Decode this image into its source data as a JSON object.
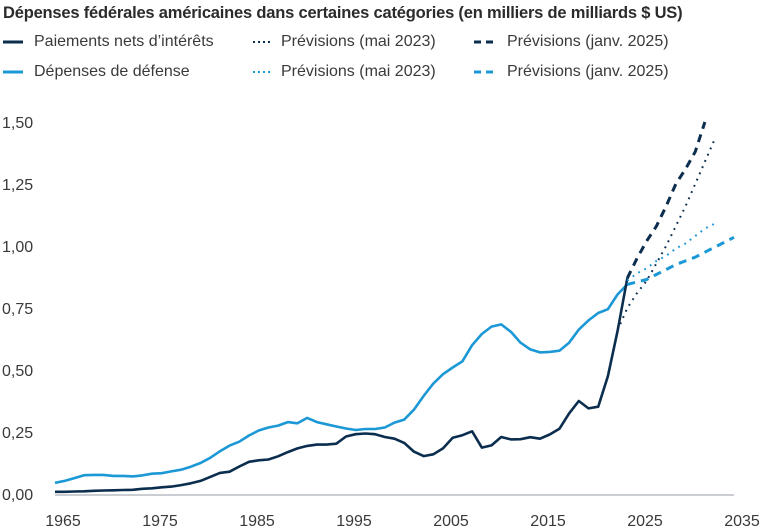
{
  "chart_data": {
    "type": "line",
    "title": "Dépenses fédérales américaines dans certaines catégories (en milliers de milliards $ US)",
    "xlabel": "",
    "ylabel": "",
    "xlim": [
      1965,
      2035
    ],
    "ylim": [
      0,
      1.5
    ],
    "grid": false,
    "legend_position": "top-left",
    "x_ticks": [
      "1965",
      "1975",
      "1985",
      "1995",
      "2005",
      "2015",
      "2025",
      "2035"
    ],
    "x_tick_values": [
      1965,
      1975,
      1985,
      1995,
      2005,
      2015,
      2025,
      2035
    ],
    "y_ticks": [
      "0,00",
      "0,25",
      "0,50",
      "0,75",
      "1,00",
      "1,25",
      "1,50"
    ],
    "y_tick_values": [
      0,
      0.25,
      0.5,
      0.75,
      1.0,
      1.25,
      1.5
    ],
    "colors": {
      "interest": "#0b2d4e",
      "defense": "#1b98d5",
      "axis": "#b9bec4"
    },
    "series": [
      {
        "name": "Paiements nets d’intérêts",
        "key": "interest_actual",
        "color": "#0b2d4e",
        "style": "solid",
        "x": [
          1965,
          1966,
          1967,
          1968,
          1969,
          1970,
          1971,
          1972,
          1973,
          1974,
          1975,
          1976,
          1977,
          1978,
          1979,
          1980,
          1981,
          1982,
          1983,
          1984,
          1985,
          1986,
          1987,
          1988,
          1989,
          1990,
          1991,
          1992,
          1993,
          1994,
          1995,
          1996,
          1997,
          1998,
          1999,
          2000,
          2001,
          2002,
          2003,
          2004,
          2005,
          2006,
          2007,
          2008,
          2009,
          2010,
          2011,
          2012,
          2013,
          2014,
          2015,
          2016,
          2017,
          2018,
          2019,
          2020,
          2021,
          2022,
          2023,
          2024
        ],
        "values": [
          0.009,
          0.009,
          0.01,
          0.011,
          0.013,
          0.014,
          0.015,
          0.016,
          0.017,
          0.021,
          0.023,
          0.027,
          0.03,
          0.036,
          0.043,
          0.053,
          0.069,
          0.085,
          0.09,
          0.111,
          0.13,
          0.136,
          0.139,
          0.152,
          0.169,
          0.184,
          0.194,
          0.199,
          0.199,
          0.203,
          0.232,
          0.241,
          0.244,
          0.241,
          0.23,
          0.223,
          0.206,
          0.171,
          0.153,
          0.16,
          0.184,
          0.227,
          0.237,
          0.253,
          0.187,
          0.196,
          0.23,
          0.22,
          0.221,
          0.229,
          0.223,
          0.24,
          0.263,
          0.325,
          0.375,
          0.345,
          0.352,
          0.475,
          0.658,
          0.87
        ]
      },
      {
        "name": "Prévisions (mai 2023)",
        "key": "interest_may2023",
        "color": "#0b2d4e",
        "style": "dotted",
        "x": [
          2023,
          2024,
          2025,
          2026,
          2027,
          2028,
          2029,
          2030,
          2031,
          2032,
          2033
        ],
        "values": [
          0.66,
          0.75,
          0.81,
          0.86,
          0.93,
          1.0,
          1.08,
          1.16,
          1.25,
          1.34,
          1.43
        ]
      },
      {
        "name": "Prévisions (janv. 2025)",
        "key": "interest_jan2025",
        "color": "#0b2d4e",
        "style": "dashed",
        "x": [
          2024,
          2025,
          2026,
          2027,
          2028,
          2029,
          2030,
          2031,
          2032
        ],
        "values": [
          0.87,
          0.95,
          1.02,
          1.08,
          1.16,
          1.25,
          1.31,
          1.38,
          1.5
        ]
      },
      {
        "name": "Dépenses de défense",
        "key": "defense_actual",
        "color": "#1b98d5",
        "style": "solid",
        "x": [
          1965,
          1966,
          1967,
          1968,
          1969,
          1970,
          1971,
          1972,
          1973,
          1974,
          1975,
          1976,
          1977,
          1978,
          1979,
          1980,
          1981,
          1982,
          1983,
          1984,
          1985,
          1986,
          1987,
          1988,
          1989,
          1990,
          1991,
          1992,
          1993,
          1994,
          1995,
          1996,
          1997,
          1998,
          1999,
          2000,
          2001,
          2002,
          2003,
          2004,
          2005,
          2006,
          2007,
          2008,
          2009,
          2010,
          2011,
          2012,
          2013,
          2014,
          2015,
          2016,
          2017,
          2018,
          2019,
          2020,
          2021,
          2022,
          2023,
          2024
        ],
        "values": [
          0.045,
          0.053,
          0.064,
          0.076,
          0.077,
          0.077,
          0.073,
          0.073,
          0.071,
          0.075,
          0.082,
          0.084,
          0.091,
          0.098,
          0.11,
          0.125,
          0.146,
          0.172,
          0.195,
          0.211,
          0.236,
          0.256,
          0.268,
          0.276,
          0.29,
          0.285,
          0.307,
          0.29,
          0.281,
          0.272,
          0.264,
          0.258,
          0.262,
          0.262,
          0.268,
          0.288,
          0.3,
          0.34,
          0.395,
          0.445,
          0.483,
          0.51,
          0.535,
          0.6,
          0.645,
          0.675,
          0.684,
          0.654,
          0.61,
          0.583,
          0.571,
          0.573,
          0.578,
          0.61,
          0.663,
          0.7,
          0.73,
          0.745,
          0.805,
          0.845
        ]
      },
      {
        "name": "Prévisions (mai 2023)",
        "key": "defense_may2023",
        "color": "#1b98d5",
        "style": "dotted",
        "x": [
          2024,
          2025,
          2026,
          2027,
          2028,
          2029,
          2030,
          2031,
          2032,
          2033
        ],
        "values": [
          0.86,
          0.89,
          0.91,
          0.94,
          0.96,
          0.99,
          1.01,
          1.04,
          1.07,
          1.09
        ]
      },
      {
        "name": "Prévisions (janv. 2025)",
        "key": "defense_jan2025",
        "color": "#1b98d5",
        "style": "dashed",
        "x": [
          2024,
          2025,
          2026,
          2027,
          2028,
          2029,
          2030,
          2031,
          2032,
          2033,
          2034,
          2035
        ],
        "values": [
          0.845,
          0.855,
          0.865,
          0.885,
          0.905,
          0.925,
          0.94,
          0.955,
          0.975,
          0.995,
          1.015,
          1.035
        ]
      }
    ]
  },
  "legend": [
    {
      "label": "Paiements nets d’intérêts",
      "color": "#0b2d4e",
      "style": "solid"
    },
    {
      "label": "Prévisions (mai 2023)",
      "color": "#0b2d4e",
      "style": "dotted"
    },
    {
      "label": "Prévisions (janv. 2025)",
      "color": "#0b2d4e",
      "style": "dashed"
    },
    {
      "label": "Dépenses de défense",
      "color": "#1b98d5",
      "style": "solid"
    },
    {
      "label": "Prévisions (mai 2023)",
      "color": "#1b98d5",
      "style": "dotted"
    },
    {
      "label": "Prévisions (janv. 2025)",
      "color": "#1b98d5",
      "style": "dashed"
    }
  ]
}
